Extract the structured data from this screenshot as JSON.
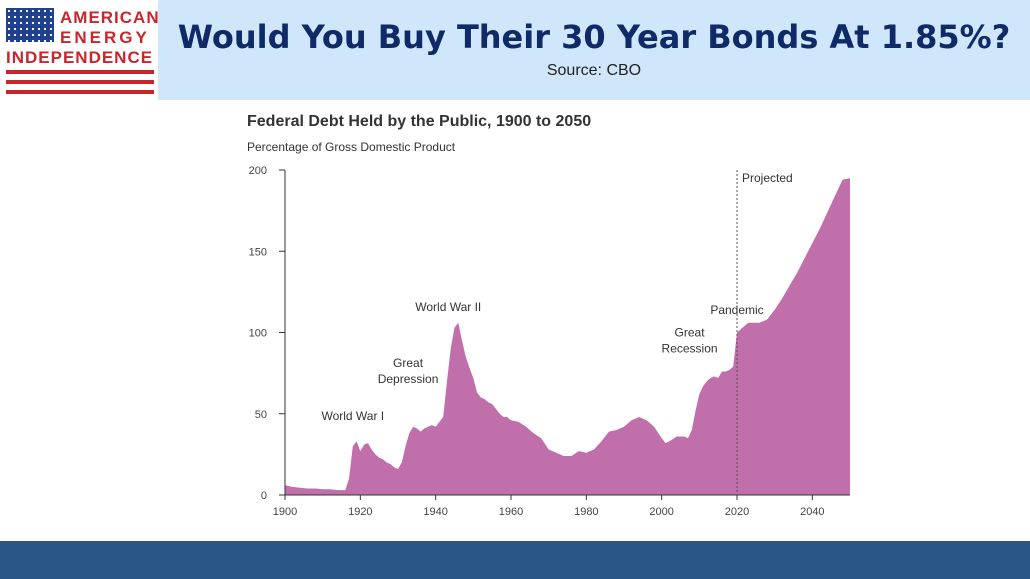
{
  "header": {
    "logo_lines": [
      "AMERICAN",
      "ENERGY",
      "INDEPENDENCE"
    ],
    "title": "Would You Buy Their 30 Year Bonds At 1.85%?",
    "source": "Source: CBO"
  },
  "colors": {
    "header_bg": "#cfe6fb",
    "title": "#0f2a66",
    "area_fill": "#c06fab",
    "footer": "#2a5685",
    "logo_red": "#c8262c",
    "logo_blue": "#1f3f8f"
  },
  "chart_data": {
    "type": "area",
    "title": "Federal Debt Held by the Public, 1900 to 2050",
    "subtitle": "Percentage of Gross Domestic Product",
    "xlabel": "",
    "ylabel": "",
    "xlim": [
      1900,
      2050
    ],
    "ylim": [
      0,
      200
    ],
    "xticks": [
      1900,
      1920,
      1940,
      1960,
      1980,
      2000,
      2020,
      2040
    ],
    "yticks": [
      0,
      50,
      100,
      150,
      200
    ],
    "grid": false,
    "projection_start": 2020,
    "projection_label": "Projected",
    "annotations": [
      {
        "text": "World War I",
        "x": 1918,
        "y": 35
      },
      {
        "text": "Great Depression",
        "x": 1934,
        "y": 43
      },
      {
        "text": "World War II",
        "x": 1946,
        "y": 106
      },
      {
        "text": "Great Recession",
        "x": 2009,
        "y": 62
      },
      {
        "text": "Pandemic",
        "x": 2020,
        "y": 104
      }
    ],
    "x": [
      1900,
      1902,
      1904,
      1906,
      1908,
      1910,
      1912,
      1914,
      1916,
      1917,
      1918,
      1919,
      1920,
      1921,
      1922,
      1923,
      1924,
      1925,
      1926,
      1927,
      1928,
      1929,
      1930,
      1931,
      1932,
      1933,
      1934,
      1935,
      1936,
      1937,
      1938,
      1939,
      1940,
      1941,
      1942,
      1943,
      1944,
      1945,
      1946,
      1947,
      1948,
      1949,
      1950,
      1951,
      1952,
      1953,
      1954,
      1955,
      1956,
      1957,
      1958,
      1959,
      1960,
      1962,
      1964,
      1966,
      1968,
      1970,
      1972,
      1974,
      1976,
      1978,
      1980,
      1982,
      1984,
      1986,
      1988,
      1990,
      1992,
      1994,
      1996,
      1998,
      2000,
      2001,
      2002,
      2004,
      2006,
      2007,
      2008,
      2009,
      2010,
      2011,
      2012,
      2013,
      2014,
      2015,
      2016,
      2017,
      2018,
      2019,
      2020,
      2021,
      2022,
      2023,
      2024,
      2026,
      2028,
      2030,
      2032,
      2034,
      2036,
      2038,
      2040,
      2042,
      2044,
      2046,
      2048,
      2050
    ],
    "series": [
      {
        "values": [
          6,
          5,
          4.5,
          4,
          4,
          3.5,
          3.5,
          3,
          3,
          10,
          30,
          33,
          27,
          31,
          32,
          28,
          25,
          23,
          22,
          20,
          19,
          17,
          16,
          20,
          30,
          38,
          42,
          41,
          39,
          41,
          42,
          43,
          42,
          45,
          48,
          70,
          90,
          103,
          106,
          95,
          85,
          78,
          72,
          63,
          60,
          59,
          57,
          56,
          53,
          50,
          48,
          48,
          46,
          45,
          42,
          38,
          35,
          28,
          26,
          24,
          24,
          27,
          26,
          28,
          33,
          39,
          40,
          42,
          46,
          48,
          46,
          42,
          35,
          32,
          33,
          36,
          36,
          35,
          40,
          52,
          62,
          67,
          70,
          72,
          73,
          72,
          76,
          76,
          77,
          79,
          100,
          102,
          104,
          106,
          106,
          106,
          108,
          114,
          121,
          129,
          137,
          146,
          155,
          164,
          174,
          184,
          194,
          195
        ]
      }
    ]
  }
}
